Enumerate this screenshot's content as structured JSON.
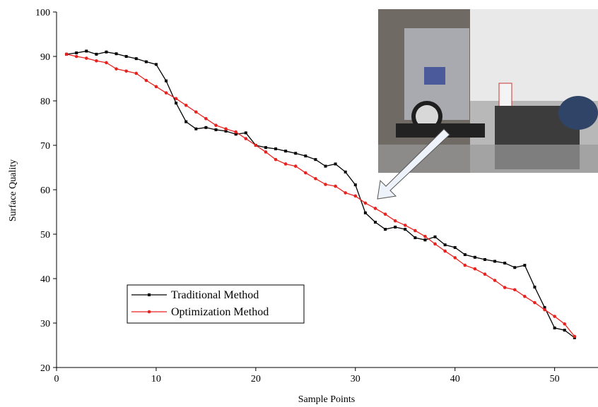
{
  "chart_data": {
    "type": "line",
    "x_label": "Sample Points",
    "y_label": "Surface Quality",
    "x": [
      1,
      2,
      3,
      4,
      5,
      6,
      7,
      8,
      9,
      10,
      11,
      12,
      13,
      14,
      15,
      16,
      17,
      18,
      19,
      20,
      21,
      22,
      23,
      24,
      25,
      26,
      27,
      28,
      29,
      30,
      31,
      32,
      33,
      34,
      35,
      36,
      37,
      38,
      39,
      40,
      41,
      42,
      43,
      44,
      45,
      46,
      47,
      48,
      49,
      50,
      51,
      52
    ],
    "series": [
      {
        "name": "Traditional Method",
        "color": "#000000",
        "marker": "square",
        "values": [
          90.5,
          90.8,
          91.2,
          90.5,
          91.0,
          90.6,
          90.0,
          89.5,
          88.8,
          88.2,
          84.5,
          79.5,
          75.3,
          73.7,
          74.0,
          73.5,
          73.2,
          72.5,
          72.8,
          70.0,
          69.5,
          69.2,
          68.7,
          68.2,
          67.6,
          66.8,
          65.3,
          65.8,
          64.0,
          61.1,
          54.8,
          52.7,
          51.1,
          51.6,
          51.1,
          49.2,
          48.7,
          49.4,
          47.6,
          47.0,
          45.4,
          44.8,
          44.3,
          43.9,
          43.5,
          42.5,
          43.0,
          38.1,
          33.5,
          28.9,
          28.4,
          26.7
        ]
      },
      {
        "name": "Optimization Method",
        "color": "#e8221e",
        "marker": "circle",
        "values": [
          90.5,
          90.0,
          89.6,
          89.0,
          88.6,
          87.2,
          86.7,
          86.2,
          84.6,
          83.2,
          81.8,
          80.5,
          79.0,
          77.5,
          76.0,
          74.5,
          73.7,
          73.0,
          71.5,
          70.0,
          68.5,
          66.8,
          65.8,
          65.3,
          63.8,
          62.5,
          61.2,
          60.8,
          59.3,
          58.6,
          57.0,
          55.8,
          54.5,
          53.0,
          52.0,
          50.8,
          49.5,
          47.8,
          46.2,
          44.7,
          43.0,
          42.2,
          41.0,
          39.6,
          38.0,
          37.5,
          36.0,
          34.6,
          33.0,
          31.5,
          29.8,
          27.0
        ]
      }
    ],
    "xlim": [
      0,
      54
    ],
    "xticks": [
      0,
      10,
      20,
      30,
      40,
      50
    ],
    "ylim": [
      20,
      100
    ],
    "yticks": [
      20,
      30,
      40,
      50,
      60,
      70,
      80,
      90,
      100
    ],
    "legend": "lower left"
  }
}
